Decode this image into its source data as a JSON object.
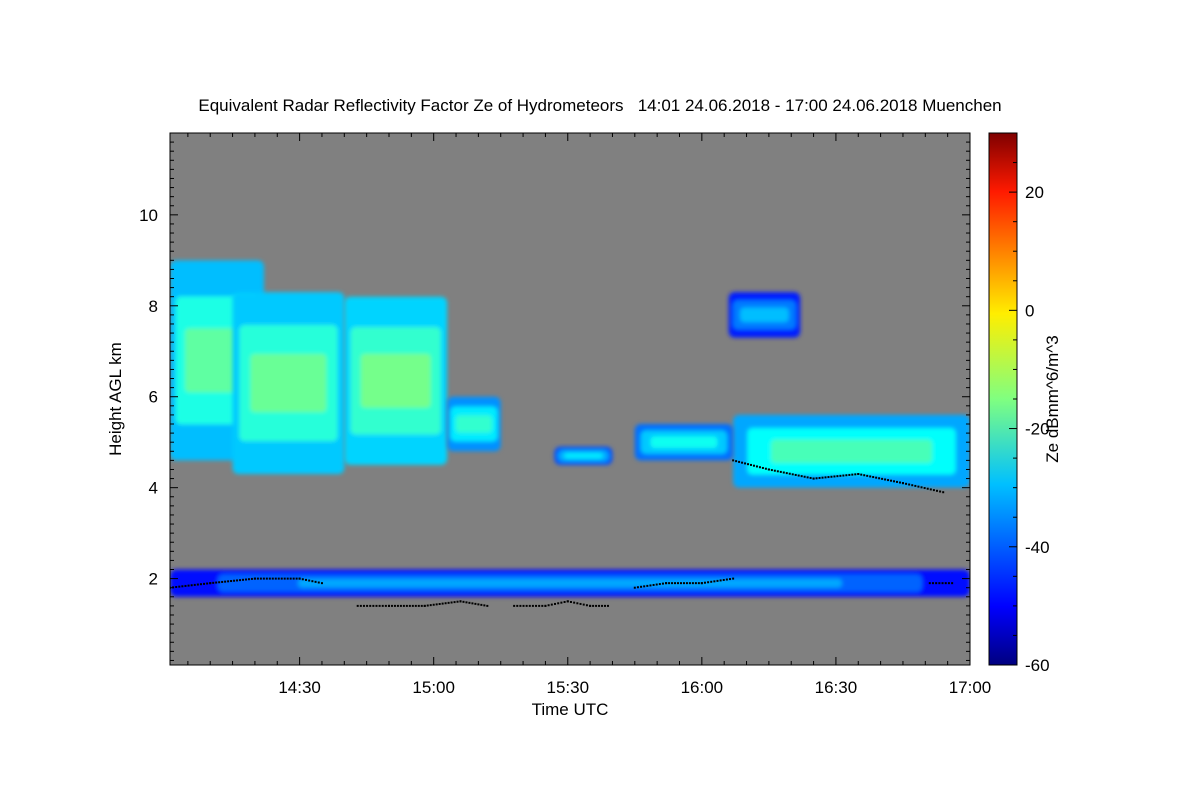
{
  "chart_data": {
    "type": "heatmap",
    "title": "Equivalent Radar Reflectivity Factor Ze of Hydrometeors   14:01 24.06.2018 - 17:00 24.06.2018 Muenchen",
    "xlabel": "Time UTC",
    "ylabel": "Height AGL km",
    "colorbar_label": "Ze dBmm^6/m^3",
    "x_start": "14:01",
    "x_end": "17:00",
    "xlim_minutes_utc": [
      841,
      1020
    ],
    "x_ticks": [
      {
        "value": 870,
        "label": "14:30"
      },
      {
        "value": 900,
        "label": "15:00"
      },
      {
        "value": 930,
        "label": "15:30"
      },
      {
        "value": 960,
        "label": "16:00"
      },
      {
        "value": 990,
        "label": "16:30"
      },
      {
        "value": 1020,
        "label": "17:00"
      }
    ],
    "ylim": [
      0.1,
      11.8
    ],
    "y_ticks": [
      2,
      4,
      6,
      8,
      10
    ],
    "colorbar_range": [
      -60,
      30
    ],
    "colorbar_ticks": [
      -60,
      -40,
      -20,
      0,
      20
    ],
    "colormap": "jet",
    "background_color": "#808080",
    "cloud_layers": [
      {
        "name": "upper cloud 1",
        "t_start": 841,
        "t_end": 862,
        "z_bottom": 4.6,
        "z_top": 9.0,
        "ze_core": -18
      },
      {
        "name": "upper cloud 1b",
        "t_start": 855,
        "t_end": 880,
        "z_bottom": 4.3,
        "z_top": 8.3,
        "ze_core": -17
      },
      {
        "name": "upper cloud 1c",
        "t_start": 880,
        "t_end": 903,
        "z_bottom": 4.5,
        "z_top": 8.2,
        "ze_core": -16
      },
      {
        "name": "upper cloud 1d",
        "t_start": 903,
        "t_end": 915,
        "z_bottom": 4.8,
        "z_top": 6.0,
        "ze_core": -22
      },
      {
        "name": "upper cloud 2",
        "t_start": 967,
        "t_end": 1020,
        "z_bottom": 4.0,
        "z_top": 5.6,
        "ze_core": -20
      },
      {
        "name": "upper cloud 3",
        "t_start": 945,
        "t_end": 967,
        "z_bottom": 4.6,
        "z_top": 5.4,
        "ze_core": -25
      },
      {
        "name": "upper cloud 4",
        "t_start": 927,
        "t_end": 940,
        "z_bottom": 4.5,
        "z_top": 4.9,
        "ze_core": -28
      },
      {
        "name": "cloud fragment",
        "t_start": 966,
        "t_end": 982,
        "z_bottom": 7.3,
        "z_top": 8.3,
        "ze_core": -32
      },
      {
        "name": "low cloud",
        "t_start": 841,
        "t_end": 1020,
        "z_bottom": 1.6,
        "z_top": 2.2,
        "ze_core": -34
      }
    ],
    "black_dot_series": [
      {
        "t": [
          841,
          850,
          860,
          870,
          875
        ],
        "z": [
          1.8,
          1.9,
          2.0,
          2.0,
          1.9
        ]
      },
      {
        "t": [
          883,
          890,
          898,
          906,
          912
        ],
        "z": [
          1.4,
          1.4,
          1.4,
          1.5,
          1.4
        ]
      },
      {
        "t": [
          918,
          925,
          930,
          935,
          939
        ],
        "z": [
          1.4,
          1.4,
          1.5,
          1.4,
          1.4
        ]
      },
      {
        "t": [
          945,
          952,
          960,
          967
        ],
        "z": [
          1.8,
          1.9,
          1.9,
          2.0
        ]
      },
      {
        "t": [
          967,
          975,
          985,
          995,
          1005,
          1014
        ],
        "z": [
          4.6,
          4.4,
          4.2,
          4.3,
          4.1,
          3.9
        ]
      },
      {
        "t": [
          1011,
          1016
        ],
        "z": [
          1.9,
          1.9
        ]
      }
    ]
  }
}
